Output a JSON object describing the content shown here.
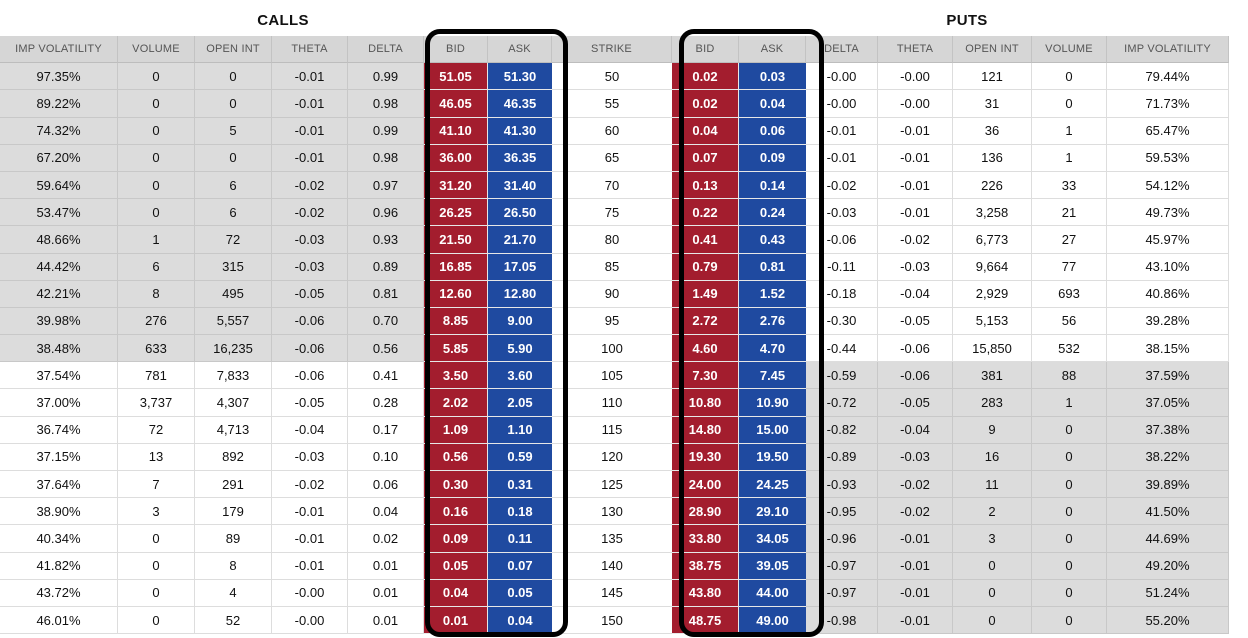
{
  "sections": {
    "calls": "CALLS",
    "puts": "PUTS"
  },
  "columns": [
    "IMP VOLATILITY",
    "VOLUME",
    "OPEN INT",
    "THETA",
    "DELTA",
    "BID",
    "ASK",
    "STRIKE",
    "BID",
    "ASK",
    "DELTA",
    "THETA",
    "OPEN INT",
    "VOLUME",
    "IMP VOLATILITY"
  ],
  "rows": [
    {
      "call": [
        "97.35%",
        "0",
        "0",
        "-0.01",
        "0.99",
        "51.05",
        "51.30"
      ],
      "strike": "50",
      "put": [
        "0.02",
        "0.03",
        "-0.00",
        "-0.00",
        "121",
        "0",
        "79.44%"
      ]
    },
    {
      "call": [
        "89.22%",
        "0",
        "0",
        "-0.01",
        "0.98",
        "46.05",
        "46.35"
      ],
      "strike": "55",
      "put": [
        "0.02",
        "0.04",
        "-0.00",
        "-0.00",
        "31",
        "0",
        "71.73%"
      ]
    },
    {
      "call": [
        "74.32%",
        "0",
        "5",
        "-0.01",
        "0.99",
        "41.10",
        "41.30"
      ],
      "strike": "60",
      "put": [
        "0.04",
        "0.06",
        "-0.01",
        "-0.01",
        "36",
        "1",
        "65.47%"
      ]
    },
    {
      "call": [
        "67.20%",
        "0",
        "0",
        "-0.01",
        "0.98",
        "36.00",
        "36.35"
      ],
      "strike": "65",
      "put": [
        "0.07",
        "0.09",
        "-0.01",
        "-0.01",
        "136",
        "1",
        "59.53%"
      ]
    },
    {
      "call": [
        "59.64%",
        "0",
        "6",
        "-0.02",
        "0.97",
        "31.20",
        "31.40"
      ],
      "strike": "70",
      "put": [
        "0.13",
        "0.14",
        "-0.02",
        "-0.01",
        "226",
        "33",
        "54.12%"
      ]
    },
    {
      "call": [
        "53.47%",
        "0",
        "6",
        "-0.02",
        "0.96",
        "26.25",
        "26.50"
      ],
      "strike": "75",
      "put": [
        "0.22",
        "0.24",
        "-0.03",
        "-0.01",
        "3,258",
        "21",
        "49.73%"
      ]
    },
    {
      "call": [
        "48.66%",
        "1",
        "72",
        "-0.03",
        "0.93",
        "21.50",
        "21.70"
      ],
      "strike": "80",
      "put": [
        "0.41",
        "0.43",
        "-0.06",
        "-0.02",
        "6,773",
        "27",
        "45.97%"
      ]
    },
    {
      "call": [
        "44.42%",
        "6",
        "315",
        "-0.03",
        "0.89",
        "16.85",
        "17.05"
      ],
      "strike": "85",
      "put": [
        "0.79",
        "0.81",
        "-0.11",
        "-0.03",
        "9,664",
        "77",
        "43.10%"
      ]
    },
    {
      "call": [
        "42.21%",
        "8",
        "495",
        "-0.05",
        "0.81",
        "12.60",
        "12.80"
      ],
      "strike": "90",
      "put": [
        "1.49",
        "1.52",
        "-0.18",
        "-0.04",
        "2,929",
        "693",
        "40.86%"
      ]
    },
    {
      "call": [
        "39.98%",
        "276",
        "5,557",
        "-0.06",
        "0.70",
        "8.85",
        "9.00"
      ],
      "strike": "95",
      "put": [
        "2.72",
        "2.76",
        "-0.30",
        "-0.05",
        "5,153",
        "56",
        "39.28%"
      ]
    },
    {
      "call": [
        "38.48%",
        "633",
        "16,235",
        "-0.06",
        "0.56",
        "5.85",
        "5.90"
      ],
      "strike": "100",
      "put": [
        "4.60",
        "4.70",
        "-0.44",
        "-0.06",
        "15,850",
        "532",
        "38.15%"
      ]
    },
    {
      "call": [
        "37.54%",
        "781",
        "7,833",
        "-0.06",
        "0.41",
        "3.50",
        "3.60"
      ],
      "strike": "105",
      "put": [
        "7.30",
        "7.45",
        "-0.59",
        "-0.06",
        "381",
        "88",
        "37.59%"
      ]
    },
    {
      "call": [
        "37.00%",
        "3,737",
        "4,307",
        "-0.05",
        "0.28",
        "2.02",
        "2.05"
      ],
      "strike": "110",
      "put": [
        "10.80",
        "10.90",
        "-0.72",
        "-0.05",
        "283",
        "1",
        "37.05%"
      ]
    },
    {
      "call": [
        "36.74%",
        "72",
        "4,713",
        "-0.04",
        "0.17",
        "1.09",
        "1.10"
      ],
      "strike": "115",
      "put": [
        "14.80",
        "15.00",
        "-0.82",
        "-0.04",
        "9",
        "0",
        "37.38%"
      ]
    },
    {
      "call": [
        "37.15%",
        "13",
        "892",
        "-0.03",
        "0.10",
        "0.56",
        "0.59"
      ],
      "strike": "120",
      "put": [
        "19.30",
        "19.50",
        "-0.89",
        "-0.03",
        "16",
        "0",
        "38.22%"
      ]
    },
    {
      "call": [
        "37.64%",
        "7",
        "291",
        "-0.02",
        "0.06",
        "0.30",
        "0.31"
      ],
      "strike": "125",
      "put": [
        "24.00",
        "24.25",
        "-0.93",
        "-0.02",
        "11",
        "0",
        "39.89%"
      ]
    },
    {
      "call": [
        "38.90%",
        "3",
        "179",
        "-0.01",
        "0.04",
        "0.16",
        "0.18"
      ],
      "strike": "130",
      "put": [
        "28.90",
        "29.10",
        "-0.95",
        "-0.02",
        "2",
        "0",
        "41.50%"
      ]
    },
    {
      "call": [
        "40.34%",
        "0",
        "89",
        "-0.01",
        "0.02",
        "0.09",
        "0.11"
      ],
      "strike": "135",
      "put": [
        "33.80",
        "34.05",
        "-0.96",
        "-0.01",
        "3",
        "0",
        "44.69%"
      ]
    },
    {
      "call": [
        "41.82%",
        "0",
        "8",
        "-0.01",
        "0.01",
        "0.05",
        "0.07"
      ],
      "strike": "140",
      "put": [
        "38.75",
        "39.05",
        "-0.97",
        "-0.01",
        "0",
        "0",
        "49.20%"
      ]
    },
    {
      "call": [
        "43.72%",
        "0",
        "4",
        "-0.00",
        "0.01",
        "0.04",
        "0.05"
      ],
      "strike": "145",
      "put": [
        "43.80",
        "44.00",
        "-0.97",
        "-0.01",
        "0",
        "0",
        "51.24%"
      ]
    },
    {
      "call": [
        "46.01%",
        "0",
        "52",
        "-0.00",
        "0.01",
        "0.01",
        "0.04"
      ],
      "strike": "150",
      "put": [
        "48.75",
        "49.00",
        "-0.98",
        "-0.01",
        "0",
        "0",
        "55.20%"
      ]
    }
  ],
  "in_the_money": {
    "calls_rows": 11,
    "puts_from_row": 11
  },
  "colors": {
    "bid": "#a31d2e",
    "ask": "#1f4aa0",
    "in_the_money": "#dcdcdc",
    "header": "#d6d6d6",
    "frame": "#000000"
  }
}
